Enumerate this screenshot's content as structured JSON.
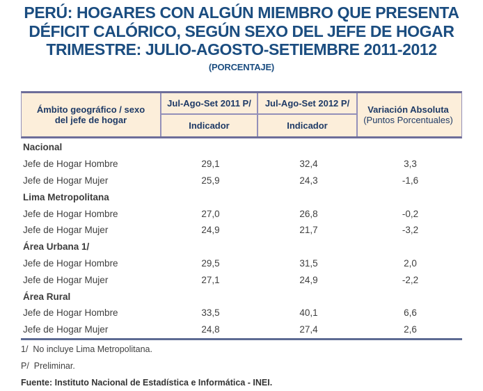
{
  "title": {
    "lines": [
      "PERÚ: HOGARES CON ALGÚN MIEMBRO QUE PRESENTA",
      "DÉFICIT CALÓRICO, SEGÚN SEXO DEL JEFE DE HOGAR",
      "TRIMESTRE: JULIO-AGOSTO-SETIEMBRE 2011-2012"
    ],
    "subtitle": "(PORCENTAJE)"
  },
  "table": {
    "header": {
      "ambito": "Ámbito geográfico / sexo del jefe de hogar",
      "period_2011": "Jul-Ago-Set 2011 P/",
      "period_2012": "Jul-Ago-Set 2012 P/",
      "indicador_2011": "Indicador",
      "indicador_2012": "Indicador",
      "variacion_line1": "Variación Absoluta",
      "variacion_line2": "(Puntos Porcentuales)"
    },
    "rows": [
      {
        "type": "group",
        "label": "Nacional",
        "y2011": "",
        "y2012": "",
        "variation": ""
      },
      {
        "type": "data",
        "label": "Jefe de Hogar Hombre",
        "y2011": "29,1",
        "y2012": "32,4",
        "variation": "3,3"
      },
      {
        "type": "data",
        "label": "Jefe de Hogar Mujer",
        "y2011": "25,9",
        "y2012": "24,3",
        "variation": "-1,6"
      },
      {
        "type": "group",
        "label": "Lima Metropolitana",
        "y2011": "",
        "y2012": "",
        "variation": ""
      },
      {
        "type": "data",
        "label": "Jefe de Hogar Hombre",
        "y2011": "27,0",
        "y2012": "26,8",
        "variation": "-0,2"
      },
      {
        "type": "data",
        "label": "Jefe de Hogar Mujer",
        "y2011": "24,9",
        "y2012": "21,7",
        "variation": "-3,2"
      },
      {
        "type": "group",
        "label": "Área Urbana 1/",
        "y2011": "",
        "y2012": "",
        "variation": ""
      },
      {
        "type": "data",
        "label": "Jefe de Hogar Hombre",
        "y2011": "29,5",
        "y2012": "31,5",
        "variation": "2,0"
      },
      {
        "type": "data",
        "label": "Jefe de Hogar Mujer",
        "y2011": "27,1",
        "y2012": "24,9",
        "variation": "-2,2"
      },
      {
        "type": "group",
        "label": "Área Rural",
        "y2011": "",
        "y2012": "",
        "variation": ""
      },
      {
        "type": "data",
        "label": "Jefe de Hogar Hombre",
        "y2011": "33,5",
        "y2012": "40,1",
        "variation": "6,6"
      },
      {
        "type": "data",
        "label": "Jefe de Hogar Mujer",
        "y2011": "24,8",
        "y2012": "27,4",
        "variation": "2,6"
      }
    ]
  },
  "footnotes": {
    "note1": "1/  No incluye Lima Metropolitana.",
    "note2": "P/  Preliminar.",
    "source": "Fuente: Instituto Nacional de Estadística e Informática - INEI."
  },
  "colors": {
    "title_blue": "#1b4d80",
    "header_background": "#fceeda",
    "header_text": "#1e3a66",
    "border_thick": "#6d6d99",
    "border_thin": "#938fb9",
    "bottom_rule": "#5d6b93",
    "body_text": "#3f3f3f"
  },
  "chart_data": {
    "type": "table",
    "title": "PERÚ: HOGARES CON ALGÚN MIEMBRO QUE PRESENTA DÉFICIT CALÓRICO, SEGÚN SEXO DEL JEFE DE HOGAR",
    "subtitle": "TRIMESTRE: JULIO-AGOSTO-SETIEMBRE 2011-2012 (PORCENTAJE)",
    "columns": [
      "Ámbito geográfico / sexo del jefe de hogar",
      "Jul-Ago-Set 2011 P/ (Indicador)",
      "Jul-Ago-Set 2012 P/ (Indicador)",
      "Variación Absoluta (Puntos Porcentuales)"
    ],
    "groups": [
      {
        "group": "Nacional",
        "rows": [
          {
            "label": "Jefe de Hogar Hombre",
            "jul_ago_set_2011": 29.1,
            "jul_ago_set_2012": 32.4,
            "variacion_absoluta": 3.3
          },
          {
            "label": "Jefe de Hogar Mujer",
            "jul_ago_set_2011": 25.9,
            "jul_ago_set_2012": 24.3,
            "variacion_absoluta": -1.6
          }
        ]
      },
      {
        "group": "Lima Metropolitana",
        "rows": [
          {
            "label": "Jefe de Hogar Hombre",
            "jul_ago_set_2011": 27.0,
            "jul_ago_set_2012": 26.8,
            "variacion_absoluta": -0.2
          },
          {
            "label": "Jefe de Hogar Mujer",
            "jul_ago_set_2011": 24.9,
            "jul_ago_set_2012": 21.7,
            "variacion_absoluta": -3.2
          }
        ]
      },
      {
        "group": "Área Urbana 1/",
        "rows": [
          {
            "label": "Jefe de Hogar Hombre",
            "jul_ago_set_2011": 29.5,
            "jul_ago_set_2012": 31.5,
            "variacion_absoluta": 2.0
          },
          {
            "label": "Jefe de Hogar Mujer",
            "jul_ago_set_2011": 27.1,
            "jul_ago_set_2012": 24.9,
            "variacion_absoluta": -2.2
          }
        ]
      },
      {
        "group": "Área Rural",
        "rows": [
          {
            "label": "Jefe de Hogar Hombre",
            "jul_ago_set_2011": 33.5,
            "jul_ago_set_2012": 40.1,
            "variacion_absoluta": 6.6
          },
          {
            "label": "Jefe de Hogar Mujer",
            "jul_ago_set_2011": 24.8,
            "jul_ago_set_2012": 27.4,
            "variacion_absoluta": 2.6
          }
        ]
      }
    ],
    "notes": [
      "1/ No incluye Lima Metropolitana.",
      "P/ Preliminar."
    ],
    "source": "Fuente: Instituto Nacional de Estadística e Informática - INEI.",
    "layout": {
      "grid": false,
      "values_unit": "percent",
      "decimal_separator": "comma"
    }
  }
}
